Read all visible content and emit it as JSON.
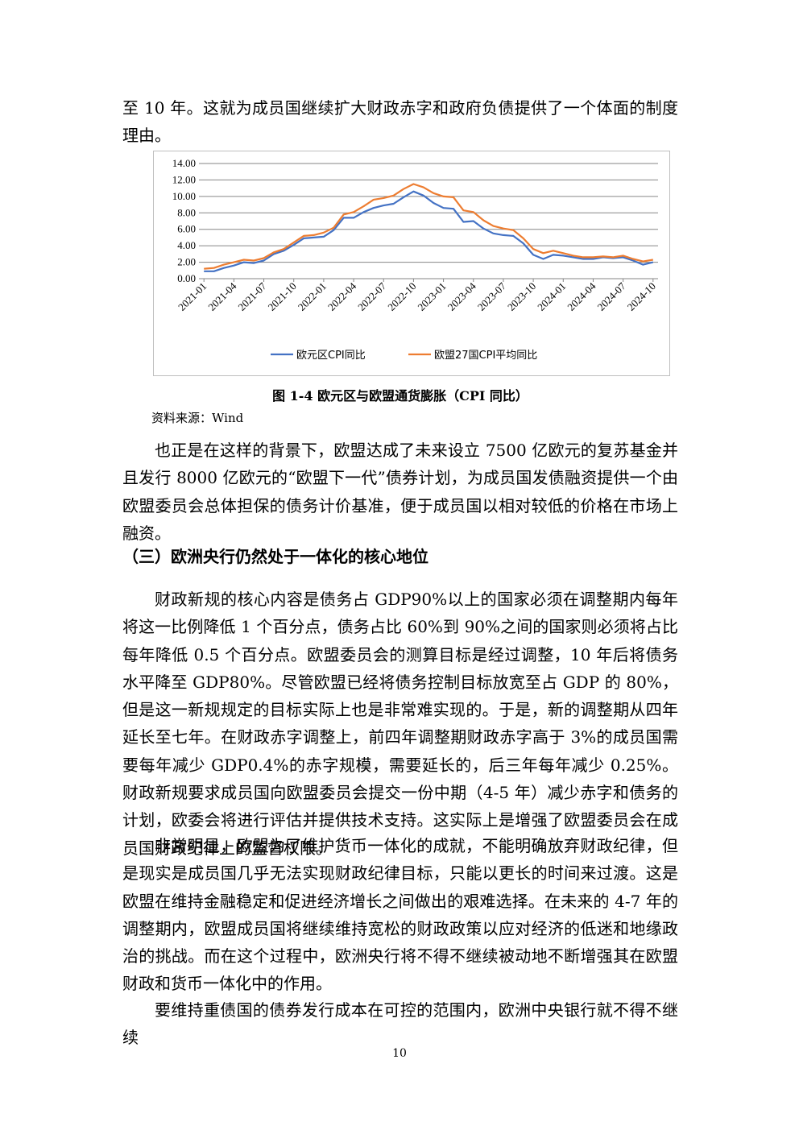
{
  "paragraphs": {
    "p0": "至 10 年。这就为成员国继续扩大财政赤字和政府负债提供了一个体面的制度理由。",
    "p1": "也正是在这样的背景下，欧盟达成了未来设立 7500 亿欧元的复苏基金并且发行 8000 亿欧元的“欧盟下一代”债券计划，为成员国发债融资提供一个由欧盟委员会总体担保的债务计价基准，便于成员国以相对较低的价格在市场上融资。",
    "p2": "财政新规的核心内容是债务占 GDP90%以上的国家必须在调整期内每年将这一比例降低 1 个百分点，债务占比 60%到 90%之间的国家则必须将占比每年降低 0.5 个百分点。欧盟委员会的测算目标是经过调整，10 年后将债务水平降至 GDP80%。尽管欧盟已经将债务控制目标放宽至占 GDP 的 80%，但是这一新规规定的目标实际上也是非常难实现的。于是，新的调整期从四年延长至七年。在财政赤字调整上，前四年调整期财政赤字高于 3%的成员国需要每年减少 GDP0.4%的赤字规模，需要延长的，后三年每年减少 0.25%。财政新规要求成员国向欧盟委员会提交一份中期（4-5 年）减少赤字和债务的计划，欧委会将进行评估并提供技术支持。这实际上是增强了欧盟委员会在成员国财政纪律上的监督权限。",
    "p3": "非常明显，欧盟为了维护货币一体化的成就，不能明确放弃财政纪律，但是现实是成员国几乎无法实现财政纪律目标，只能以更长的时间来过渡。这是欧盟在维持金融稳定和促进经济增长之间做出的艰难选择。在未来的 4-7 年的调整期内，欧盟成员国将继续维持宽松的财政政策以应对经济的低迷和地缘政治的挑战。而在这个过程中，欧洲央行将不得不继续被动地不断增强其在欧盟财政和货币一体化中的作用。",
    "p4": "要维持重债国的债券发行成本在可控的范围内，欧洲中央银行就不得不继续"
  },
  "figure": {
    "caption": "图 1-4  欧元区与欧盟通货膨胀（CPI 同比）",
    "source": "资料来源：Wind"
  },
  "heading": "（三）欧洲央行仍然处于一体化的核心地位",
  "page_number": "10",
  "chart_data": {
    "type": "line",
    "x_tick_labels": [
      "2021-01",
      "2021-04",
      "2021-07",
      "2021-10",
      "2022-01",
      "2022-04",
      "2022-07",
      "2022-10",
      "2023-01",
      "2023-04",
      "2023-07",
      "2023-10",
      "2024-01",
      "2024-04",
      "2024-07",
      "2024-10"
    ],
    "y_tick_labels": [
      "0.00",
      "2.00",
      "4.00",
      "6.00",
      "8.00",
      "10.00",
      "12.00",
      "14.00"
    ],
    "ylim": [
      0,
      14
    ],
    "grid": "horizontal",
    "legend_position": "bottom",
    "series": [
      {
        "name": "欧元区CPI同比",
        "color": "#4472c4",
        "values": [
          0.9,
          0.9,
          1.3,
          1.6,
          2.0,
          1.9,
          2.2,
          3.0,
          3.4,
          4.1,
          4.9,
          5.0,
          5.1,
          5.9,
          7.4,
          7.4,
          8.1,
          8.6,
          8.9,
          9.1,
          9.9,
          10.6,
          10.1,
          9.2,
          8.6,
          8.5,
          6.9,
          7.0,
          6.1,
          5.5,
          5.3,
          5.2,
          4.3,
          2.9,
          2.4,
          2.9,
          2.8,
          2.6,
          2.4,
          2.4,
          2.6,
          2.5,
          2.6,
          2.2,
          1.7,
          2.0
        ]
      },
      {
        "name": "欧盟27国CPI平均同比",
        "color": "#ed7d31",
        "values": [
          1.2,
          1.3,
          1.7,
          2.0,
          2.3,
          2.2,
          2.5,
          3.2,
          3.6,
          4.4,
          5.2,
          5.3,
          5.6,
          6.2,
          7.8,
          8.1,
          8.8,
          9.6,
          9.8,
          10.1,
          10.9,
          11.5,
          11.1,
          10.4,
          10.0,
          9.9,
          8.3,
          8.1,
          7.1,
          6.4,
          6.1,
          5.9,
          4.9,
          3.6,
          3.1,
          3.4,
          3.1,
          2.8,
          2.6,
          2.6,
          2.7,
          2.6,
          2.8,
          2.4,
          2.1,
          2.3
        ]
      }
    ]
  }
}
